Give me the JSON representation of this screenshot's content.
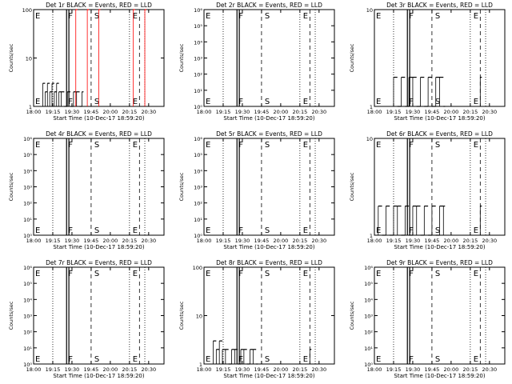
{
  "chart_data": [
    {
      "type": "line",
      "title": "Det 1r BLACK = Events, RED = LLD",
      "xlabel": "Start Time (10-Dec-17 18:59:20)",
      "ylabel": "Counts/sec",
      "y_scale": "log",
      "ylim": [
        1,
        100
      ],
      "y_ticks": [
        "1",
        "10",
        "100"
      ],
      "x_ticks": [
        "18:00",
        "19:15",
        "19:30",
        "19:45",
        "20:00",
        "20:15",
        "20:30"
      ],
      "markers": [
        "E",
        "F",
        "S",
        "E"
      ],
      "series": [
        {
          "name": "BLACK = Events",
          "color": "#000000",
          "x": [
            19.12,
            19.15,
            19.18,
            19.21,
            19.24,
            19.27,
            19.3,
            19.33,
            19.36,
            19.4,
            19.44,
            19.48,
            19.52,
            19.56,
            19.6,
            19.63
          ],
          "values": [
            3,
            2,
            3,
            2,
            3,
            2,
            3,
            2,
            2,
            1,
            2,
            1,
            2,
            2,
            1,
            2
          ]
        },
        {
          "name": "RED = LLD",
          "color": "#ff0000",
          "x": [
            19.55,
            19.7,
            19.85,
            20.3,
            20.45
          ],
          "values": [
            100,
            100,
            100,
            100,
            100
          ]
        }
      ]
    },
    {
      "type": "line",
      "title": "Det 2r BLACK = Events, RED = LLD",
      "xlabel": "Start Time (10-Dec-17 18:59:20)",
      "ylabel": "Counts/sec",
      "y_scale": "log",
      "ylim": [
        1,
        1000000
      ],
      "y_ticks": [
        "10⁰",
        "10¹",
        "10²",
        "10³",
        "10⁴",
        "10⁵",
        "10⁶"
      ],
      "x_ticks": [
        "18:00",
        "19:15",
        "19:30",
        "19:45",
        "20:00",
        "20:15",
        "20:30"
      ],
      "markers": [
        "E",
        "F",
        "S",
        "E"
      ],
      "series": []
    },
    {
      "type": "line",
      "title": "Det 3r BLACK = Events, RED = LLD",
      "xlabel": "Start Time (10-Dec-17 18:59:20)",
      "ylabel": "Counts/sec",
      "y_scale": "log",
      "ylim": [
        1,
        10
      ],
      "y_ticks": [
        "1",
        "10"
      ],
      "x_ticks": [
        "18:00",
        "19:15",
        "19:30",
        "19:45",
        "20:00",
        "20:15",
        "20:30"
      ],
      "markers": [
        "E",
        "F",
        "S",
        "E"
      ],
      "series": [
        {
          "name": "BLACK = Events",
          "color": "#000000",
          "x": [
            19.25,
            19.3,
            19.35,
            19.4,
            19.45,
            19.5,
            19.55,
            19.6,
            19.65,
            19.7,
            19.75,
            19.8,
            19.85,
            19.9,
            20.38
          ],
          "values": [
            2,
            1,
            2,
            1,
            2,
            2,
            1,
            2,
            1,
            2,
            1,
            2,
            2,
            1,
            2
          ]
        }
      ]
    },
    {
      "type": "line",
      "title": "Det 4r BLACK = Events, RED = LLD",
      "xlabel": "Start Time (10-Dec-17 18:59:20)",
      "ylabel": "Counts/sec",
      "y_scale": "log",
      "ylim": [
        1,
        1000000
      ],
      "y_ticks": [
        "10⁰",
        "10¹",
        "10²",
        "10³",
        "10⁴",
        "10⁵",
        "10⁶"
      ],
      "x_ticks": [
        "18:00",
        "19:15",
        "19:30",
        "19:45",
        "20:00",
        "20:15",
        "20:30"
      ],
      "markers": [
        "E",
        "F",
        "S",
        "E"
      ],
      "series": []
    },
    {
      "type": "line",
      "title": "Det 5r BLACK = Events, RED = LLD",
      "xlabel": "Start Time (10-Dec-17 18:59:20)",
      "ylabel": "Counts/sec",
      "y_scale": "log",
      "ylim": [
        1,
        1000000
      ],
      "y_ticks": [
        "10⁰",
        "10¹",
        "10²",
        "10³",
        "10⁴",
        "10⁵",
        "10⁶"
      ],
      "x_ticks": [
        "18:00",
        "19:15",
        "19:30",
        "19:45",
        "20:00",
        "20:15",
        "20:30"
      ],
      "markers": [
        "E",
        "F",
        "S",
        "E"
      ],
      "series": []
    },
    {
      "type": "line",
      "title": "Det 6r BLACK = Events, RED = LLD",
      "xlabel": "Start Time (10-Dec-17 18:59:20)",
      "ylabel": "Counts/sec",
      "y_scale": "log",
      "ylim": [
        1,
        10
      ],
      "y_ticks": [
        "1",
        "10"
      ],
      "x_ticks": [
        "18:00",
        "19:15",
        "19:30",
        "19:45",
        "20:00",
        "20:15",
        "20:30"
      ],
      "markers": [
        "E",
        "F",
        "S",
        "E"
      ],
      "series": [
        {
          "name": "BLACK = Events",
          "color": "#000000",
          "x": [
            19.05,
            19.1,
            19.15,
            19.2,
            19.25,
            19.3,
            19.35,
            19.4,
            19.45,
            19.5,
            19.55,
            19.6,
            19.65,
            19.7,
            19.75,
            19.8,
            19.85,
            19.9,
            20.38
          ],
          "values": [
            2,
            1,
            2,
            1,
            2,
            2,
            1,
            2,
            1,
            2,
            2,
            1,
            2,
            1,
            2,
            1,
            2,
            2,
            2
          ]
        }
      ]
    },
    {
      "type": "line",
      "title": "Det 7r BLACK = Events, RED = LLD",
      "xlabel": "Start Time (10-Dec-17 18:59:20)",
      "ylabel": "Counts/sec",
      "y_scale": "log",
      "ylim": [
        1,
        1000000
      ],
      "y_ticks": [
        "10⁰",
        "10¹",
        "10²",
        "10³",
        "10⁴",
        "10⁵",
        "10⁶"
      ],
      "x_ticks": [
        "18:00",
        "19:15",
        "19:30",
        "19:45",
        "20:00",
        "20:15",
        "20:30"
      ],
      "markers": [
        "E",
        "F",
        "S",
        "E"
      ],
      "series": []
    },
    {
      "type": "line",
      "title": "Det 8r BLACK = Events, RED = LLD",
      "xlabel": "Start Time (10-Dec-17 18:59:20)",
      "ylabel": "Counts/sec",
      "y_scale": "log",
      "ylim": [
        1,
        100
      ],
      "y_ticks": [
        "1",
        "10",
        "100"
      ],
      "x_ticks": [
        "18:00",
        "19:15",
        "19:30",
        "19:45",
        "20:00",
        "20:15",
        "20:30"
      ],
      "markers": [
        "E",
        "F",
        "S",
        "E"
      ],
      "series": [
        {
          "name": "BLACK = Events",
          "color": "#000000",
          "x": [
            19.12,
            19.16,
            19.2,
            19.24,
            19.28,
            19.32,
            19.36,
            19.4,
            19.44,
            19.48,
            19.52,
            19.56,
            19.6,
            19.64,
            19.68,
            20.38
          ],
          "values": [
            3,
            2,
            3,
            2,
            2,
            1,
            2,
            2,
            1,
            2,
            2,
            1,
            2,
            2,
            1,
            2
          ]
        }
      ]
    },
    {
      "type": "line",
      "title": "Det 9r BLACK = Events, RED = LLD",
      "xlabel": "Start Time (10-Dec-17 18:59:20)",
      "ylabel": "Counts/sec",
      "y_scale": "log",
      "ylim": [
        1,
        1000000
      ],
      "y_ticks": [
        "10⁰",
        "10¹",
        "10²",
        "10³",
        "10⁴",
        "10⁵",
        "10⁶"
      ],
      "x_ticks": [
        "18:00",
        "19:15",
        "19:30",
        "19:45",
        "20:00",
        "20:15",
        "20:30"
      ],
      "markers": [
        "E",
        "F",
        "S",
        "E"
      ],
      "series": []
    }
  ]
}
